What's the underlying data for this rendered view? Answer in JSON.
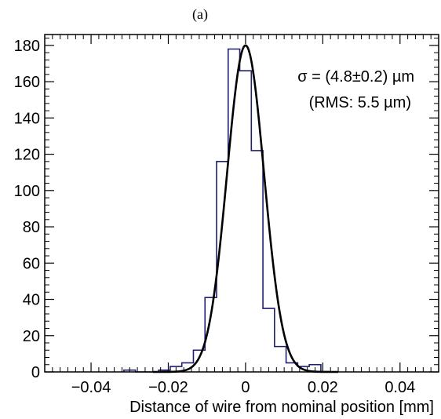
{
  "chart_data": {
    "type": "bar",
    "panel_label": "(a)",
    "xlabel": "Distance of wire from nominal position [mm]",
    "ylabel": "",
    "xlim": [
      -0.052,
      0.05
    ],
    "ylim": [
      0,
      186
    ],
    "x_ticks": [
      -0.04,
      -0.02,
      0,
      0.02,
      0.04
    ],
    "x_tick_labels": [
      "−0.04",
      "−0.02",
      "0",
      "0.02",
      "0.04"
    ],
    "y_ticks": [
      0,
      20,
      40,
      60,
      80,
      100,
      120,
      140,
      160,
      180
    ],
    "y_tick_labels": [
      "0",
      "20",
      "40",
      "60",
      "80",
      "100",
      "120",
      "140",
      "160",
      "180"
    ],
    "grid": false,
    "histogram": {
      "bin_width": 0.003,
      "bin_edges": [
        -0.0315,
        -0.0285,
        -0.0255,
        -0.0225,
        -0.0195,
        -0.0165,
        -0.0135,
        -0.0105,
        -0.0075,
        -0.0045,
        -0.0015,
        0.0015,
        0.0045,
        0.0075,
        0.0105,
        0.0135,
        0.0165,
        0.0195,
        0.0225
      ],
      "counts": [
        1,
        0,
        0,
        1,
        3,
        5,
        12,
        41,
        116,
        178,
        166,
        122,
        35,
        14,
        5,
        3,
        4,
        0
      ]
    },
    "fit": {
      "type": "gaussian",
      "mean": 0,
      "sigma": 0.0048,
      "amplitude": 180
    },
    "annotations": {
      "sigma_text": "σ = (4.8±0.2) µm",
      "rms_text": "(RMS: 5.5 µm)"
    },
    "colors": {
      "histogram": "#1f1f6e",
      "fit": "#000000",
      "axes": "#000000"
    }
  }
}
